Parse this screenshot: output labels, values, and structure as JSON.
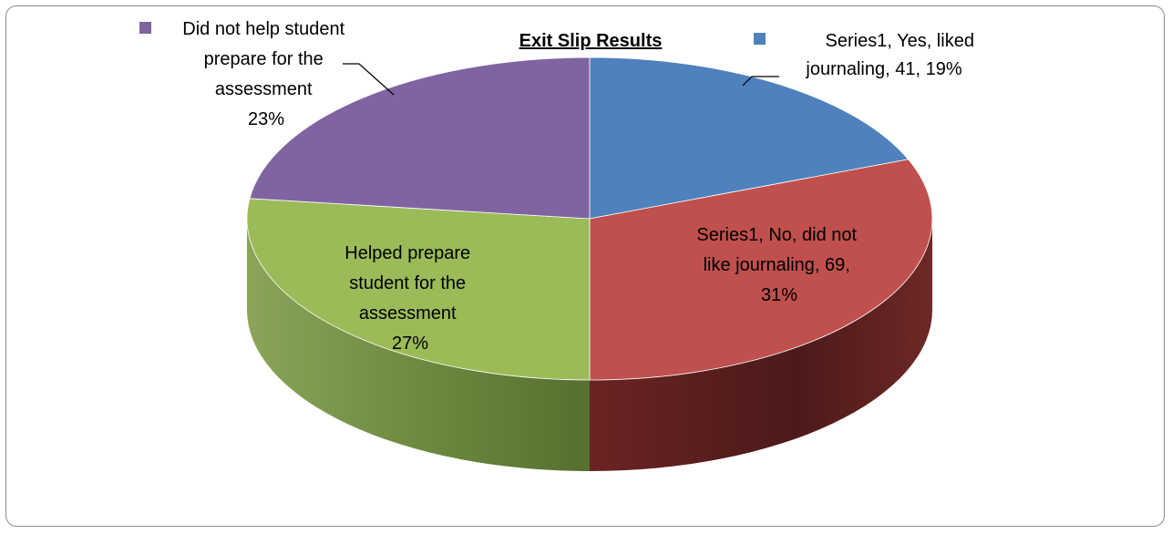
{
  "chart_data": {
    "type": "pie",
    "style": "3d",
    "title": "Exit Slip Results",
    "slices": [
      {
        "label": "Series1, Yes, liked journaling, 41, 19%",
        "lines": [
          "Series1, Yes, liked",
          "journaling, 41, 19%"
        ],
        "value": 41,
        "percent": 19,
        "color": "#4F81BD"
      },
      {
        "label": "Series1, No, did not like journaling, 69, 31%",
        "lines": [
          "Series1, No, did not",
          "like journaling, 69,",
          "31%"
        ],
        "value": 69,
        "percent": 31,
        "color": "#C0504D"
      },
      {
        "label": "Helped prepare student for the assessment 27%",
        "lines": [
          "Helped prepare",
          "student for the",
          "assessment",
          "27%"
        ],
        "percent": 27,
        "color": "#9BBB59"
      },
      {
        "label": "Did not help student prepare for the assessment 23%",
        "lines": [
          "Did not help student",
          "prepare for the",
          "assessment",
          "23%"
        ],
        "percent": 23,
        "color": "#8064A2"
      }
    ]
  }
}
